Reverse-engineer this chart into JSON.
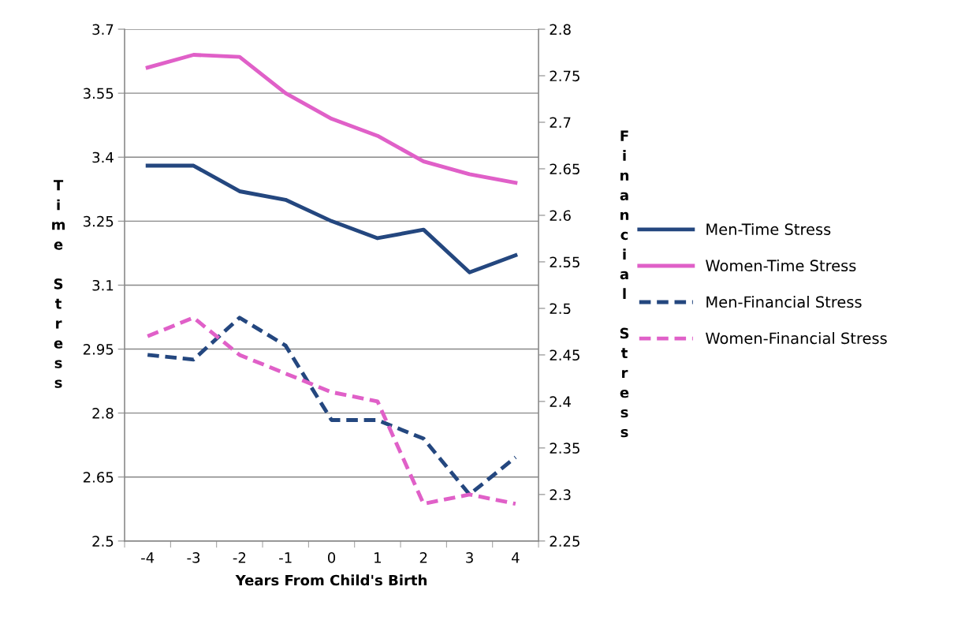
{
  "chart_data": {
    "type": "line",
    "xlabel": "Years From Child's Birth",
    "ylabel": "Time Stress",
    "y2label": "Financial Stress",
    "categories": [
      "-4",
      "-3",
      "-2",
      "-1",
      "0",
      "1",
      "2",
      "3",
      "4"
    ],
    "series": [
      {
        "name": "Men-Time Stress",
        "color": "#24477f",
        "line_style": "solid",
        "values": [
          3.38,
          3.38,
          3.32,
          3.3,
          3.25,
          3.21,
          3.23,
          3.13,
          3.17
        ]
      },
      {
        "name": "Women-Time Stress",
        "color": "#e060c8",
        "line_style": "solid",
        "values": [
          3.61,
          3.64,
          3.635,
          3.55,
          3.49,
          3.45,
          3.39,
          3.36,
          3.34
        ]
      },
      {
        "name": "Men-Financial Stress",
        "color": "#24477f",
        "line_style": "dashed",
        "axis": "y2",
        "values": [
          2.45,
          2.445,
          2.49,
          2.46,
          2.38,
          2.38,
          2.36,
          2.3,
          2.34
        ]
      },
      {
        "name": "Women-Financial Stress",
        "color": "#e060c8",
        "line_style": "dashed",
        "axis": "y2",
        "values": [
          2.47,
          2.49,
          2.45,
          2.43,
          2.41,
          2.4,
          2.29,
          2.3,
          2.29
        ]
      }
    ],
    "ylim": [
      2.5,
      3.7
    ],
    "yticks": [
      2.5,
      2.65,
      2.8,
      2.95,
      3.1,
      3.25,
      3.4,
      3.55,
      3.7
    ],
    "y2lim": [
      2.25,
      2.8
    ],
    "y2ticks": [
      2.25,
      2.3,
      2.35,
      2.4,
      2.45,
      2.5,
      2.55,
      2.6,
      2.65,
      2.7,
      2.75,
      2.8
    ],
    "grid": "y",
    "legend": "right",
    "marker": "none"
  }
}
